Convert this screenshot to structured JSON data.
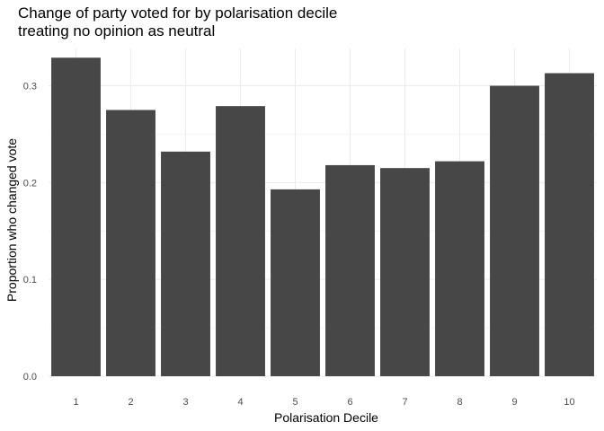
{
  "chart_data": {
    "type": "bar",
    "title_lines": [
      "Change of party voted for by polarisation decile",
      "treating no opinion as neutral"
    ],
    "xlabel": "Polarisation Decile",
    "ylabel": "Proportion who changed vote",
    "categories": [
      "1",
      "2",
      "3",
      "4",
      "5",
      "6",
      "7",
      "8",
      "9",
      "10"
    ],
    "values": [
      0.329,
      0.275,
      0.232,
      0.279,
      0.193,
      0.218,
      0.215,
      0.222,
      0.3,
      0.313
    ],
    "ylim": [
      0,
      0.3385
    ],
    "yticks": [
      0.0,
      0.1,
      0.2,
      0.3
    ],
    "ytick_labels": [
      "0.0",
      "0.1",
      "0.2",
      "0.3"
    ],
    "grid": true,
    "colors": {
      "bar": "#474747",
      "grid_major": "#ebebeb",
      "grid_minor": "#f4f4f4"
    }
  }
}
